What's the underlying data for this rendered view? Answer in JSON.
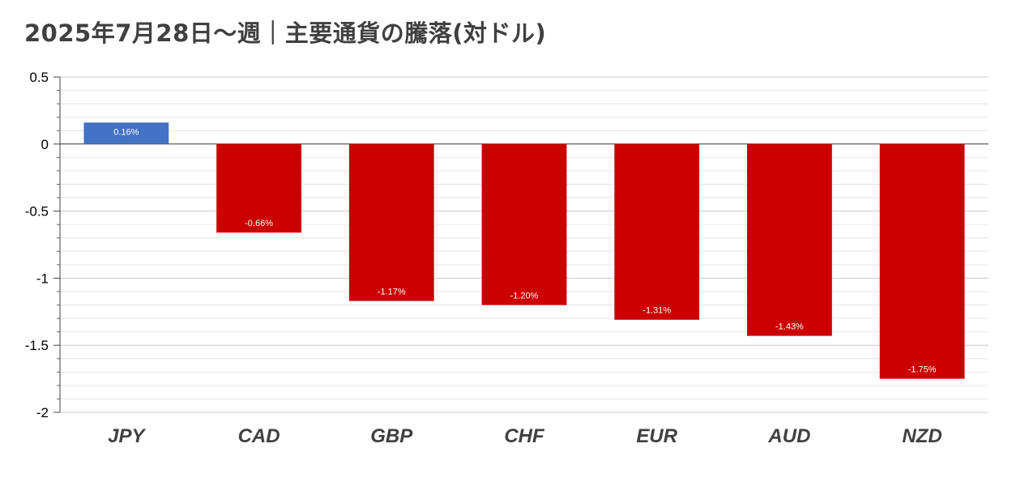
{
  "chart_data": {
    "type": "bar",
    "title": "2025年7月28日～週｜主要通貨の騰落(対ドル)",
    "categories": [
      "JPY",
      "CAD",
      "GBP",
      "CHF",
      "EUR",
      "AUD",
      "NZD"
    ],
    "values": [
      0.16,
      -0.66,
      -1.17,
      -1.2,
      -1.31,
      -1.43,
      -1.75
    ],
    "data_labels": [
      "0.16%",
      "-0.66%",
      "-1.17%",
      "-1.20%",
      "-1.31%",
      "-1.43%",
      "-1.75%"
    ],
    "xlabel": "",
    "ylabel": "",
    "ylim": [
      -2,
      0.5
    ],
    "yticks": [
      "0.5",
      "0",
      "-0.5",
      "-1",
      "-1.5",
      "-2"
    ],
    "grid": true,
    "legend": "none",
    "colors": {
      "positive": "#4472c4",
      "negative": "#cc0000",
      "major_grid": "#cccccc",
      "minor_grid": "#e6e6e6",
      "zero_line": "#333333",
      "title": "#404040",
      "category_label": "#404040"
    }
  }
}
